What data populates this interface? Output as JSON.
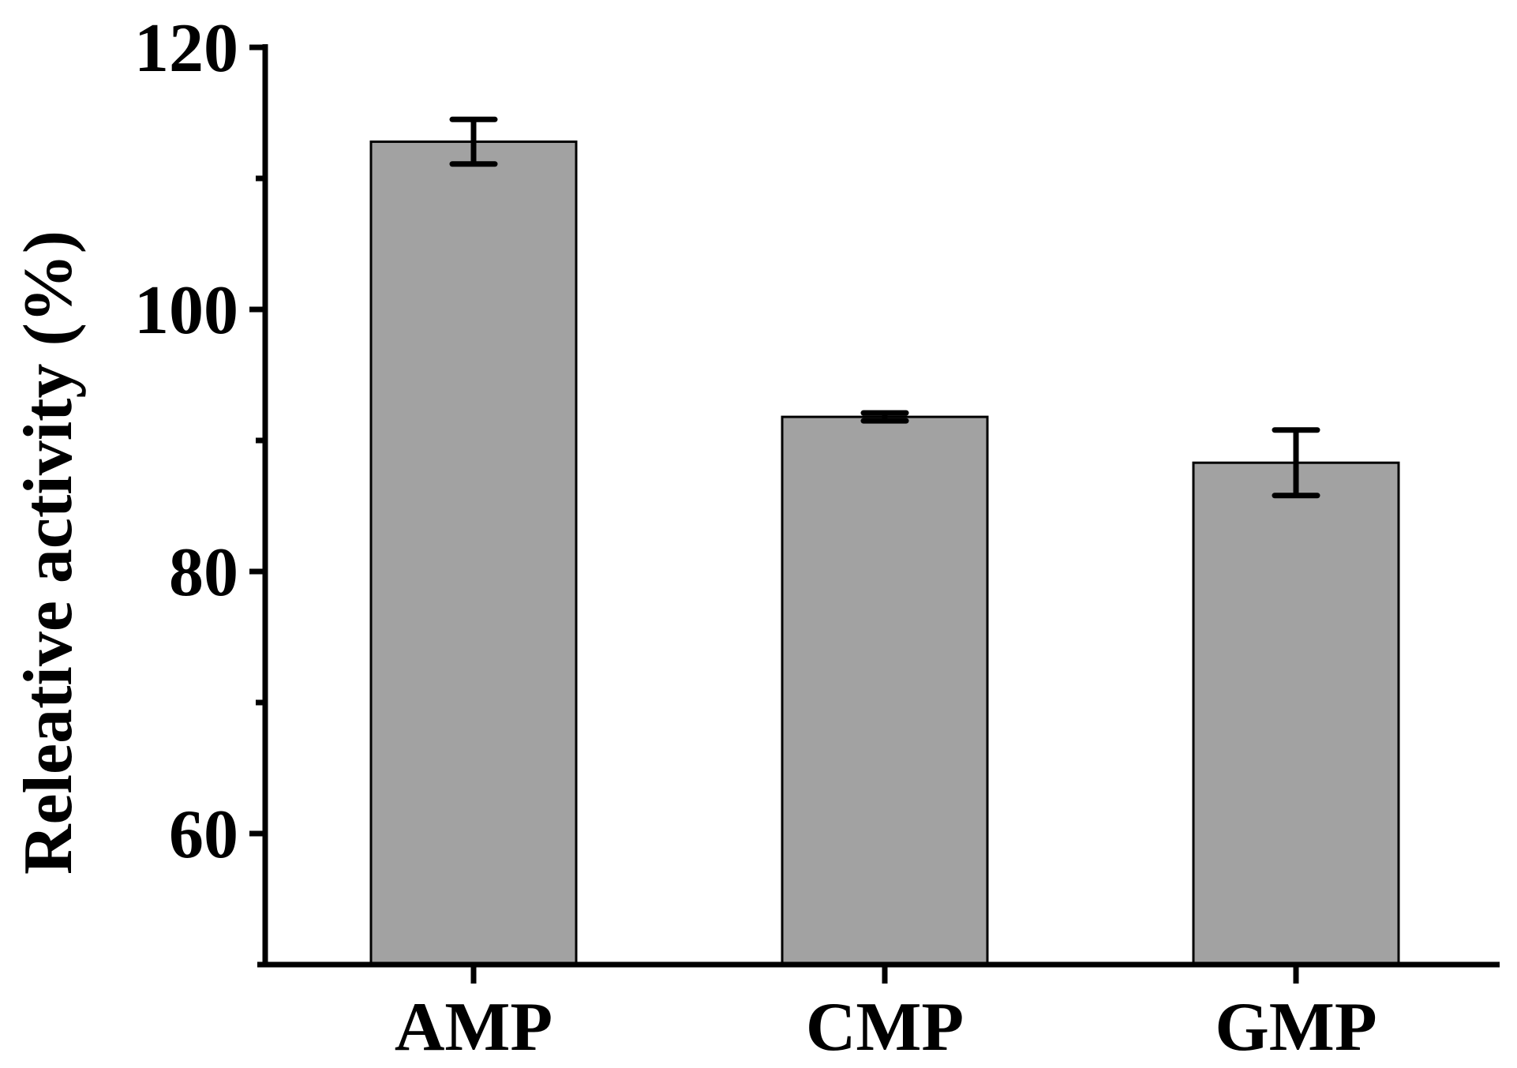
{
  "chart_data": {
    "type": "bar",
    "categories": [
      "AMP",
      "CMP",
      "GMP"
    ],
    "values": [
      112.8,
      91.8,
      88.3
    ],
    "errors": [
      1.7,
      0.3,
      2.5
    ],
    "ylabel": "Releative activity (%)",
    "xlabel": "",
    "title": "",
    "ylim": [
      50,
      120
    ],
    "yticks": [
      60,
      80,
      100,
      120
    ],
    "ytick_labels": [
      "60",
      "80",
      "100",
      "120"
    ],
    "minor_yticks": [
      70,
      90,
      110
    ],
    "grid": false,
    "bar_color": "#a2a2a2",
    "bar_edge_color": "#000000",
    "axis_color": "#000000"
  }
}
